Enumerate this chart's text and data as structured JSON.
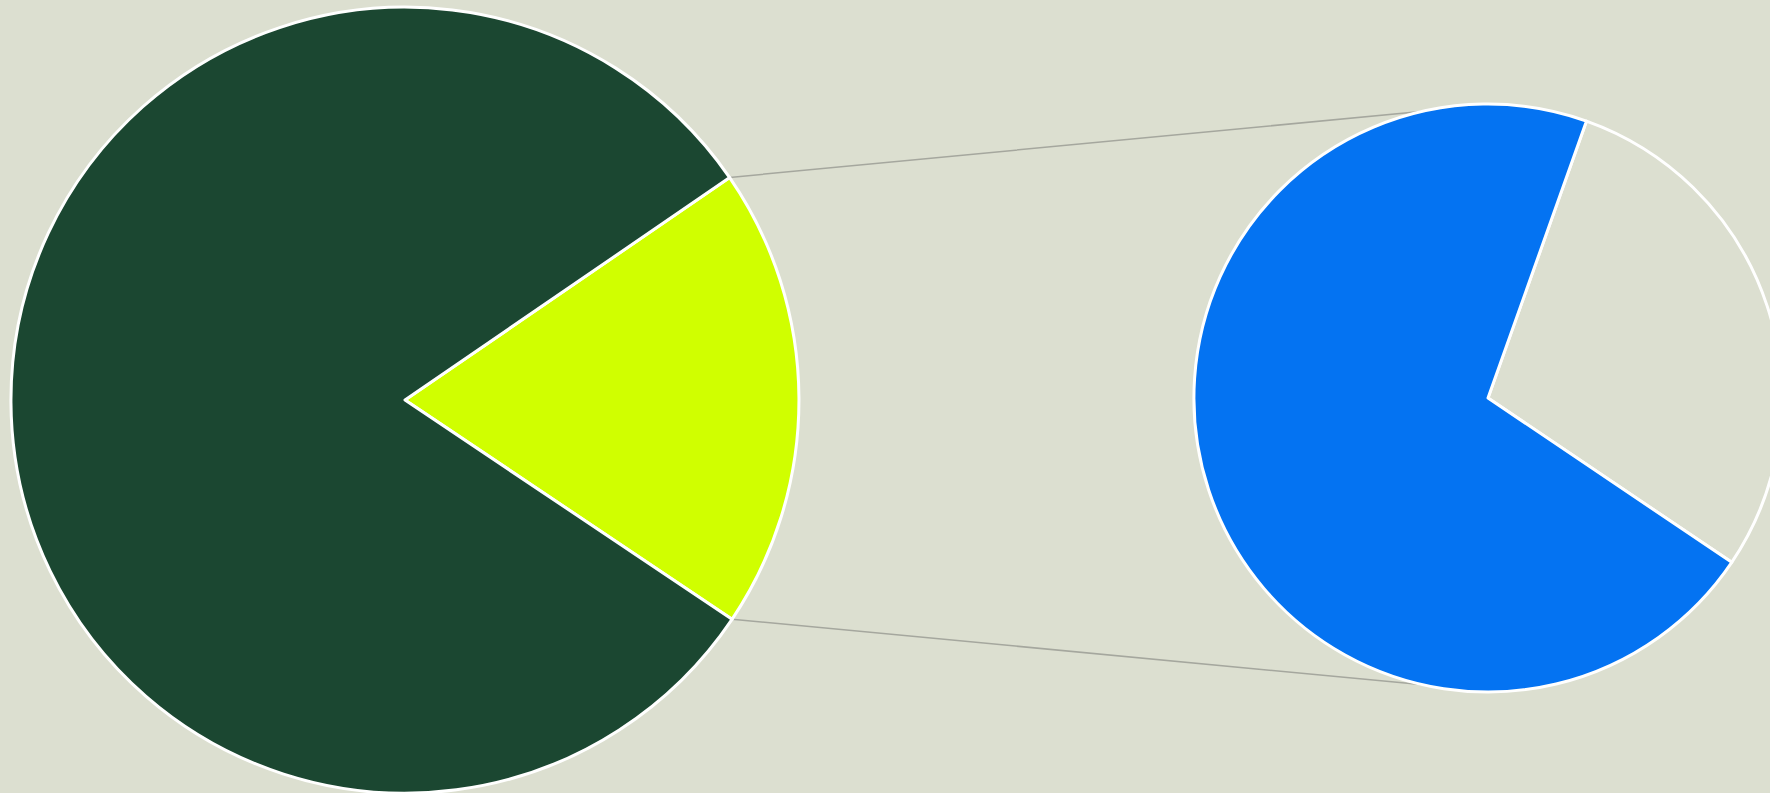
{
  "chart_data": [
    {
      "type": "pie",
      "categories": [
        null,
        null
      ],
      "values": [
        19,
        81
      ],
      "colors": [
        "#d0ff00",
        "#1b4731"
      ]
    },
    {
      "type": "pie",
      "categories": [
        null,
        null
      ],
      "values": [
        29,
        71
      ],
      "colors": [
        "#dcdfd0",
        "#0473f2"
      ]
    }
  ]
}
